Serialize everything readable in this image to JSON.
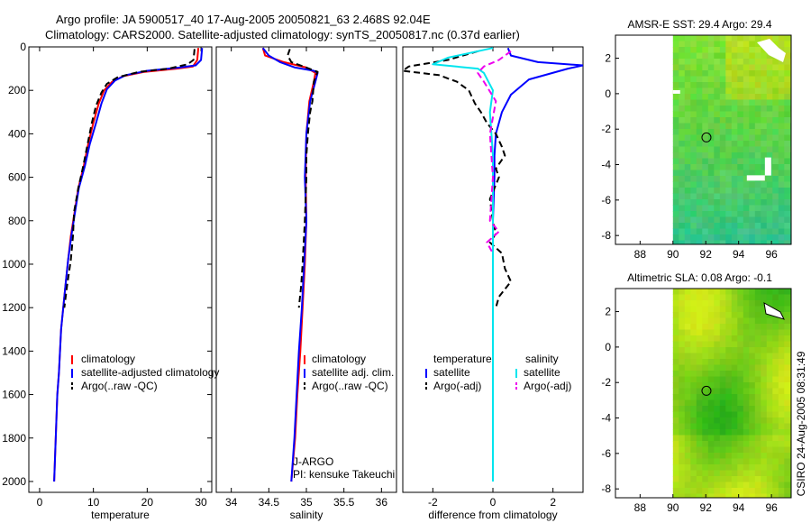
{
  "header": {
    "line1": "Argo profile: JA 5900517_40 17-Aug-2005 20050821_63 2.468S 92.04E",
    "line2": "Climatology: CARS2000. Satellite-adjusted climatology: synTS_20050817.nc (0.37d earlier)"
  },
  "footer": {
    "credit": "CSIRO 24-Aug-2005 08:31:49"
  },
  "colors": {
    "red": "#ff0000",
    "blue": "#0000ff",
    "black": "#000000",
    "cyan": "#00e5ee",
    "magenta": "#ee00ee",
    "land_white": "#ffffff"
  },
  "chart_data": [
    {
      "type": "line",
      "id": "temperature",
      "xlabel": "temperature",
      "ylabel": "",
      "xlim": [
        -2,
        32
      ],
      "ylim": [
        2050,
        0
      ],
      "xticks": [
        0,
        10,
        20,
        30
      ],
      "xtick_labels": [
        "0",
        "10",
        "20",
        "30"
      ],
      "yticks": [
        0,
        200,
        400,
        600,
        800,
        1000,
        1200,
        1400,
        1600,
        1800,
        2000
      ],
      "ytick_labels": [
        "0",
        "200",
        "400",
        "600",
        "800",
        "1000",
        "1200",
        "1400",
        "1600",
        "1800",
        "2000"
      ],
      "legend": [
        "climatology",
        "satellite-adjusted climatology",
        "Argo(..raw -QC)"
      ],
      "series": [
        {
          "name": "climatology",
          "color": "red",
          "dash": "solid",
          "x": [
            29.5,
            29.3,
            28.5,
            25.5,
            19.5,
            15.5,
            13.5,
            12,
            11,
            10,
            9,
            8.2,
            7.2,
            6.5,
            5.8,
            5.3,
            4.8,
            4.4,
            4,
            3.8,
            3.6,
            3.3,
            2.7
          ],
          "y": [
            5,
            60,
            90,
            100,
            115,
            135,
            160,
            200,
            260,
            350,
            450,
            550,
            650,
            760,
            870,
            980,
            1100,
            1200,
            1300,
            1400,
            1500,
            1600,
            2000
          ]
        },
        {
          "name": "satellite-adjusted climatology",
          "color": "blue",
          "dash": "solid",
          "x": [
            30.2,
            30,
            29,
            26,
            20,
            16,
            14,
            12.5,
            11.5,
            10.5,
            9.3,
            8.4,
            7.3,
            6.6,
            5.9,
            5.3,
            4.8,
            4.4,
            4,
            3.8,
            3.6,
            3.3,
            2.7
          ],
          "y": [
            5,
            60,
            85,
            95,
            110,
            130,
            155,
            195,
            260,
            350,
            450,
            550,
            650,
            760,
            870,
            980,
            1100,
            1200,
            1300,
            1400,
            1500,
            1600,
            2000
          ]
        },
        {
          "name": "Argo(..raw -QC)",
          "color": "black",
          "dash": "dashed",
          "x": [
            28.8,
            28.6,
            27.5,
            24,
            18.5,
            14.5,
            12.5,
            11.5,
            10.5,
            9.7,
            8.9,
            8.1,
            7.2,
            6.4,
            6.2,
            5.8,
            5.1,
            4.6
          ],
          "y": [
            10,
            60,
            80,
            100,
            115,
            140,
            170,
            210,
            270,
            350,
            450,
            550,
            650,
            760,
            870,
            980,
            1100,
            1200
          ]
        }
      ]
    },
    {
      "type": "line",
      "id": "salinity",
      "xlabel": "salinity",
      "ylabel": "",
      "xlim": [
        33.8,
        36.2
      ],
      "ylim": [
        2050,
        0
      ],
      "xticks": [
        34,
        34.5,
        35,
        35.5,
        36
      ],
      "xtick_labels": [
        "34",
        "34.5",
        "35",
        "35.5",
        "36"
      ],
      "legend": [
        "climatology",
        "satellite adj. clim.",
        "Argo(..raw -QC)"
      ],
      "annotations": [
        "J-ARGO",
        "PI: kensuke Takeuchi"
      ],
      "series": [
        {
          "name": "climatology",
          "color": "red",
          "dash": "solid",
          "x": [
            34.42,
            34.45,
            34.7,
            35.0,
            35.12,
            35.1,
            35.04,
            35.0,
            34.99,
            35.0,
            34.98,
            34.95,
            34.92,
            34.88,
            34.85,
            34.8
          ],
          "y": [
            5,
            40,
            70,
            95,
            120,
            160,
            250,
            400,
            600,
            800,
            1000,
            1200,
            1400,
            1600,
            1800,
            2000
          ]
        },
        {
          "name": "satellite adj. clim.",
          "color": "blue",
          "dash": "solid",
          "x": [
            34.42,
            34.5,
            34.65,
            34.85,
            35.1,
            35.15,
            35.12,
            35.05,
            35.0,
            34.98,
            35.0,
            34.97,
            34.94,
            34.9,
            34.87,
            34.84,
            34.8
          ],
          "y": [
            5,
            40,
            70,
            95,
            110,
            120,
            160,
            250,
            400,
            600,
            800,
            1000,
            1200,
            1400,
            1600,
            1800,
            2000
          ]
        },
        {
          "name": "Argo(..raw -QC)",
          "color": "black",
          "dash": "dashed",
          "x": [
            34.78,
            34.75,
            34.8,
            35.0,
            35.15,
            35.1,
            35.08,
            35.05,
            35.02,
            35.0,
            35.0,
            34.98,
            34.95,
            34.93,
            34.9
          ],
          "y": [
            10,
            40,
            70,
            95,
            115,
            160,
            250,
            300,
            400,
            500,
            600,
            800,
            1000,
            1100,
            1200
          ]
        }
      ]
    },
    {
      "type": "line",
      "id": "difference",
      "xlabel": "difference from climatology",
      "ylabel": "",
      "xlim": [
        -3,
        3
      ],
      "ylim": [
        2050,
        0
      ],
      "xticks": [
        -2,
        0,
        2
      ],
      "xtick_labels": [
        "-2",
        "0",
        "2"
      ],
      "legend_groups": [
        {
          "title": "temperature",
          "items": [
            "satellite",
            "Argo(-adj)"
          ]
        },
        {
          "title": "salinity",
          "items": [
            "satellite",
            "Argo(-adj)"
          ]
        }
      ],
      "series": [
        {
          "name": "temperature satellite",
          "color": "blue",
          "dash": "solid",
          "x": [
            0.5,
            0.6,
            1.5,
            3.0,
            2.5,
            1.2,
            0.6,
            0.3,
            0.1,
            0.05,
            0.05,
            0.0,
            0.0,
            0.0,
            0.0
          ],
          "y": [
            5,
            40,
            70,
            85,
            100,
            150,
            220,
            300,
            400,
            500,
            600,
            800,
            1000,
            1500,
            2000
          ]
        },
        {
          "name": "temperature Argo(-adj)",
          "color": "black",
          "dash": "dashed",
          "x": [
            -0.5,
            -1.5,
            -2.8,
            -3.0,
            -1.8,
            -1.2,
            -0.8,
            -0.6,
            -0.4,
            -0.2,
            0.1,
            0.3,
            0.4,
            0.1,
            0.2,
            -0.1,
            0.0,
            0.1,
            -0.1,
            0.3,
            0.4,
            0.6,
            0.2,
            0.1
          ],
          "y": [
            20,
            60,
            90,
            110,
            130,
            160,
            200,
            260,
            300,
            350,
            400,
            460,
            500,
            560,
            600,
            700,
            800,
            860,
            900,
            950,
            1020,
            1080,
            1150,
            1200
          ]
        },
        {
          "name": "salinity satellite",
          "color": "cyan",
          "dash": "solid",
          "x": [
            0.0,
            -1.5,
            -2.0,
            -0.5,
            -0.3,
            0.0,
            -0.1,
            0.0,
            0.0,
            0.0,
            0.0,
            0.0
          ],
          "y": [
            5,
            50,
            80,
            100,
            120,
            200,
            300,
            500,
            800,
            1200,
            1600,
            2000
          ]
        },
        {
          "name": "salinity Argo(-adj)",
          "color": "magenta",
          "dash": "dashed",
          "x": [
            0.6,
            0.4,
            0.2,
            -0.3,
            -0.5,
            -0.3,
            0.1,
            -0.1,
            0.0,
            -0.1,
            0.2,
            -0.2,
            0.0
          ],
          "y": [
            20,
            40,
            60,
            90,
            120,
            160,
            250,
            400,
            600,
            800,
            850,
            900,
            950
          ]
        }
      ]
    },
    {
      "type": "heatmap",
      "id": "sst_map",
      "title": "AMSR-E SST: 29.4 Argo: 29.4",
      "xlim": [
        86.5,
        97.2
      ],
      "ylim": [
        -8.5,
        3.3
      ],
      "xticks": [
        88,
        90,
        92,
        94,
        96
      ],
      "xtick_labels": [
        "88",
        "90",
        "92",
        "94",
        "96"
      ],
      "yticks": [
        2,
        0,
        -2,
        -4,
        -6,
        -8
      ],
      "ytick_labels": [
        "2",
        "0",
        "-2",
        "-4",
        "-6",
        "-8"
      ],
      "float_position": {
        "lon": 92.04,
        "lat": -2.468
      }
    },
    {
      "type": "heatmap",
      "id": "sla_map",
      "title": "Altimetric SLA: 0.08 Argo: -0.1",
      "xlim": [
        86.5,
        97.2
      ],
      "ylim": [
        -8.5,
        3.3
      ],
      "xticks": [
        88,
        90,
        92,
        94,
        96
      ],
      "xtick_labels": [
        "88",
        "90",
        "92",
        "94",
        "96"
      ],
      "yticks": [
        2,
        0,
        -2,
        -4,
        -6,
        -8
      ],
      "ytick_labels": [
        "2",
        "0",
        "-2",
        "-4",
        "-6",
        "-8"
      ],
      "float_position": {
        "lon": 92.04,
        "lat": -2.468
      }
    }
  ]
}
